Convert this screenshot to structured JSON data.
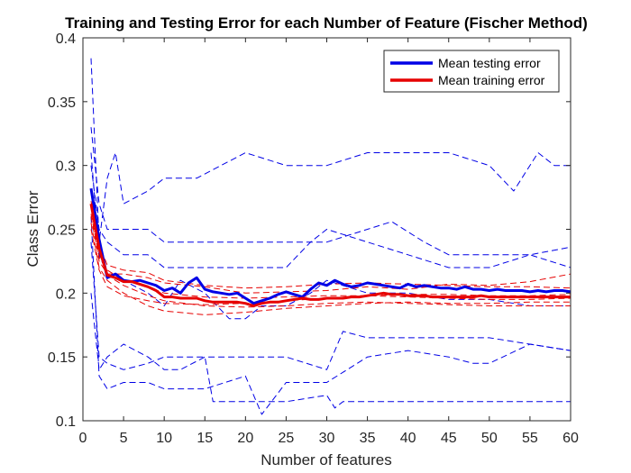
{
  "chart_data": {
    "type": "line",
    "title": "Training and Testing Error for each Number of Feature (Fischer Method)",
    "xlabel": "Number of features",
    "ylabel": "Class Error",
    "xlim": [
      0,
      60
    ],
    "ylim": [
      0.1,
      0.4
    ],
    "xticks": [
      0,
      5,
      10,
      15,
      20,
      25,
      30,
      35,
      40,
      45,
      50,
      55,
      60
    ],
    "yticks": [
      0.1,
      0.15,
      0.2,
      0.25,
      0.3,
      0.35,
      0.4
    ],
    "grid": false,
    "legend_position": "top-right",
    "colors": {
      "testing": "#0000e6",
      "training": "#e60000",
      "axis": "#262626"
    },
    "series": [
      {
        "name": "Mean testing error",
        "style": "solid",
        "color": "#0000e6",
        "x": [
          1,
          2,
          3,
          4,
          5,
          6,
          7,
          8,
          9,
          10,
          11,
          12,
          13,
          14,
          15,
          16,
          17,
          18,
          19,
          20,
          21,
          22,
          23,
          24,
          25,
          26,
          27,
          28,
          29,
          30,
          31,
          32,
          33,
          34,
          35,
          36,
          37,
          38,
          39,
          40,
          41,
          42,
          43,
          44,
          45,
          46,
          47,
          48,
          49,
          50,
          51,
          52,
          53,
          54,
          55,
          56,
          57,
          58,
          59,
          60
        ],
        "values": [
          0.282,
          0.242,
          0.212,
          0.215,
          0.21,
          0.209,
          0.21,
          0.208,
          0.206,
          0.202,
          0.204,
          0.2,
          0.208,
          0.212,
          0.203,
          0.201,
          0.2,
          0.199,
          0.2,
          0.196,
          0.192,
          0.194,
          0.196,
          0.199,
          0.201,
          0.199,
          0.197,
          0.203,
          0.208,
          0.206,
          0.21,
          0.207,
          0.205,
          0.206,
          0.208,
          0.207,
          0.206,
          0.205,
          0.204,
          0.207,
          0.205,
          0.206,
          0.205,
          0.204,
          0.204,
          0.203,
          0.205,
          0.203,
          0.203,
          0.202,
          0.203,
          0.202,
          0.202,
          0.202,
          0.201,
          0.202,
          0.201,
          0.202,
          0.202,
          0.201
        ]
      },
      {
        "name": "Mean training error",
        "style": "solid",
        "color": "#e60000",
        "x": [
          1,
          2,
          3,
          4,
          5,
          6,
          7,
          8,
          9,
          10,
          11,
          12,
          13,
          14,
          15,
          16,
          17,
          18,
          19,
          20,
          21,
          22,
          23,
          24,
          25,
          26,
          27,
          28,
          29,
          30,
          31,
          32,
          33,
          34,
          35,
          36,
          37,
          38,
          39,
          40,
          41,
          42,
          43,
          44,
          45,
          46,
          47,
          48,
          49,
          50,
          51,
          52,
          53,
          54,
          55,
          56,
          57,
          58,
          59,
          60
        ],
        "values": [
          0.27,
          0.235,
          0.214,
          0.212,
          0.209,
          0.209,
          0.207,
          0.205,
          0.202,
          0.197,
          0.197,
          0.196,
          0.196,
          0.196,
          0.194,
          0.193,
          0.193,
          0.193,
          0.193,
          0.192,
          0.19,
          0.192,
          0.193,
          0.193,
          0.194,
          0.195,
          0.196,
          0.195,
          0.195,
          0.196,
          0.196,
          0.196,
          0.197,
          0.197,
          0.198,
          0.199,
          0.2,
          0.199,
          0.199,
          0.198,
          0.198,
          0.198,
          0.197,
          0.197,
          0.197,
          0.197,
          0.197,
          0.197,
          0.198,
          0.197,
          0.197,
          0.197,
          0.197,
          0.197,
          0.197,
          0.197,
          0.197,
          0.197,
          0.197,
          0.197
        ]
      },
      {
        "style": "dashed",
        "color": "#0000e6",
        "x": [
          1,
          2,
          3,
          4,
          5,
          8,
          10,
          14,
          20,
          25,
          30,
          35,
          40,
          45,
          50,
          53,
          56,
          58,
          60
        ],
        "values": [
          0.384,
          0.24,
          0.29,
          0.31,
          0.27,
          0.28,
          0.29,
          0.29,
          0.31,
          0.3,
          0.3,
          0.31,
          0.31,
          0.31,
          0.3,
          0.28,
          0.31,
          0.3,
          0.3
        ]
      },
      {
        "style": "dashed",
        "color": "#0000e6",
        "x": [
          1,
          2,
          3,
          5,
          8,
          10,
          15,
          20,
          25,
          30,
          35,
          38,
          42,
          45,
          50,
          55,
          60
        ],
        "values": [
          0.33,
          0.27,
          0.25,
          0.25,
          0.25,
          0.24,
          0.24,
          0.24,
          0.24,
          0.24,
          0.25,
          0.256,
          0.24,
          0.23,
          0.23,
          0.23,
          0.236
        ]
      },
      {
        "style": "dashed",
        "color": "#0000e6",
        "x": [
          1,
          2,
          3,
          5,
          8,
          10,
          15,
          20,
          25,
          28,
          30,
          35,
          40,
          45,
          50,
          55,
          60
        ],
        "values": [
          0.3,
          0.25,
          0.24,
          0.23,
          0.23,
          0.22,
          0.22,
          0.22,
          0.22,
          0.24,
          0.25,
          0.24,
          0.23,
          0.22,
          0.22,
          0.23,
          0.22
        ]
      },
      {
        "style": "dashed",
        "color": "#0000e6",
        "x": [
          1,
          2,
          3,
          5,
          8,
          10,
          12,
          15,
          18,
          20,
          22,
          25,
          28,
          30,
          35,
          40,
          45,
          50,
          55,
          60
        ],
        "values": [
          0.31,
          0.23,
          0.215,
          0.21,
          0.2,
          0.19,
          0.21,
          0.2,
          0.18,
          0.18,
          0.19,
          0.19,
          0.2,
          0.21,
          0.2,
          0.2,
          0.195,
          0.195,
          0.19,
          0.19
        ]
      },
      {
        "style": "dashed",
        "color": "#0000e6",
        "x": [
          1,
          2,
          3,
          5,
          8,
          10,
          12,
          15,
          18,
          20,
          25,
          30,
          32,
          35,
          40,
          45,
          50,
          55,
          60
        ],
        "values": [
          0.2,
          0.14,
          0.15,
          0.16,
          0.15,
          0.14,
          0.14,
          0.15,
          0.15,
          0.15,
          0.15,
          0.14,
          0.17,
          0.165,
          0.165,
          0.165,
          0.165,
          0.16,
          0.155
        ]
      },
      {
        "style": "dashed",
        "color": "#0000e6",
        "x": [
          1,
          2,
          3,
          5,
          8,
          10,
          15,
          20,
          22,
          25,
          30,
          35,
          40,
          45,
          48,
          50,
          55,
          60
        ],
        "values": [
          0.26,
          0.135,
          0.125,
          0.13,
          0.13,
          0.125,
          0.125,
          0.135,
          0.105,
          0.13,
          0.13,
          0.15,
          0.155,
          0.15,
          0.145,
          0.145,
          0.16,
          0.155
        ]
      },
      {
        "style": "dashed",
        "color": "#0000e6",
        "x": [
          1,
          2,
          3,
          5,
          8,
          10,
          15,
          16,
          20,
          25,
          30,
          31,
          32,
          35,
          40,
          45,
          50,
          55,
          60
        ],
        "values": [
          0.24,
          0.15,
          0.145,
          0.14,
          0.145,
          0.15,
          0.15,
          0.115,
          0.115,
          0.115,
          0.12,
          0.11,
          0.115,
          0.115,
          0.115,
          0.115,
          0.115,
          0.115,
          0.115
        ]
      },
      {
        "style": "dashed",
        "color": "#e60000",
        "x": [
          1,
          2,
          3,
          5,
          8,
          10,
          15,
          20,
          25,
          30,
          35,
          40,
          45,
          50,
          55,
          60
        ],
        "values": [
          0.26,
          0.225,
          0.215,
          0.215,
          0.212,
          0.208,
          0.205,
          0.2,
          0.201,
          0.202,
          0.205,
          0.203,
          0.207,
          0.206,
          0.209,
          0.215
        ]
      },
      {
        "style": "dashed",
        "color": "#e60000",
        "x": [
          1,
          2,
          3,
          5,
          8,
          10,
          15,
          20,
          25,
          30,
          35,
          40,
          45,
          50,
          55,
          60
        ],
        "values": [
          0.255,
          0.22,
          0.21,
          0.2,
          0.19,
          0.186,
          0.183,
          0.185,
          0.188,
          0.19,
          0.192,
          0.193,
          0.192,
          0.192,
          0.193,
          0.193
        ]
      },
      {
        "style": "dashed",
        "color": "#e60000",
        "x": [
          1,
          2,
          3,
          5,
          8,
          10,
          15,
          20,
          25,
          30,
          35,
          40,
          45,
          50,
          55,
          60
        ],
        "values": [
          0.262,
          0.228,
          0.218,
          0.21,
          0.205,
          0.2,
          0.197,
          0.196,
          0.197,
          0.198,
          0.198,
          0.197,
          0.196,
          0.195,
          0.195,
          0.196
        ]
      },
      {
        "style": "dashed",
        "color": "#e60000",
        "x": [
          1,
          2,
          3,
          5,
          8,
          10,
          15,
          20,
          25,
          30,
          35,
          40,
          45,
          50,
          55,
          60
        ],
        "values": [
          0.268,
          0.232,
          0.214,
          0.206,
          0.198,
          0.194,
          0.19,
          0.189,
          0.19,
          0.192,
          0.193,
          0.192,
          0.191,
          0.19,
          0.19,
          0.19
        ]
      },
      {
        "style": "dashed",
        "color": "#e60000",
        "x": [
          1,
          2,
          3,
          5,
          8,
          10,
          15,
          20,
          25,
          30,
          35,
          40,
          45,
          50,
          55,
          60
        ],
        "values": [
          0.25,
          0.218,
          0.205,
          0.198,
          0.194,
          0.192,
          0.191,
          0.192,
          0.194,
          0.196,
          0.198,
          0.199,
          0.199,
          0.198,
          0.198,
          0.199
        ]
      },
      {
        "style": "dashed",
        "color": "#e60000",
        "x": [
          1,
          2,
          3,
          5,
          8,
          10,
          15,
          20,
          25,
          30,
          35,
          40,
          45,
          50,
          55,
          60
        ],
        "values": [
          0.272,
          0.238,
          0.222,
          0.218,
          0.216,
          0.21,
          0.206,
          0.204,
          0.205,
          0.207,
          0.208,
          0.207,
          0.206,
          0.205,
          0.205,
          0.204
        ]
      }
    ]
  }
}
